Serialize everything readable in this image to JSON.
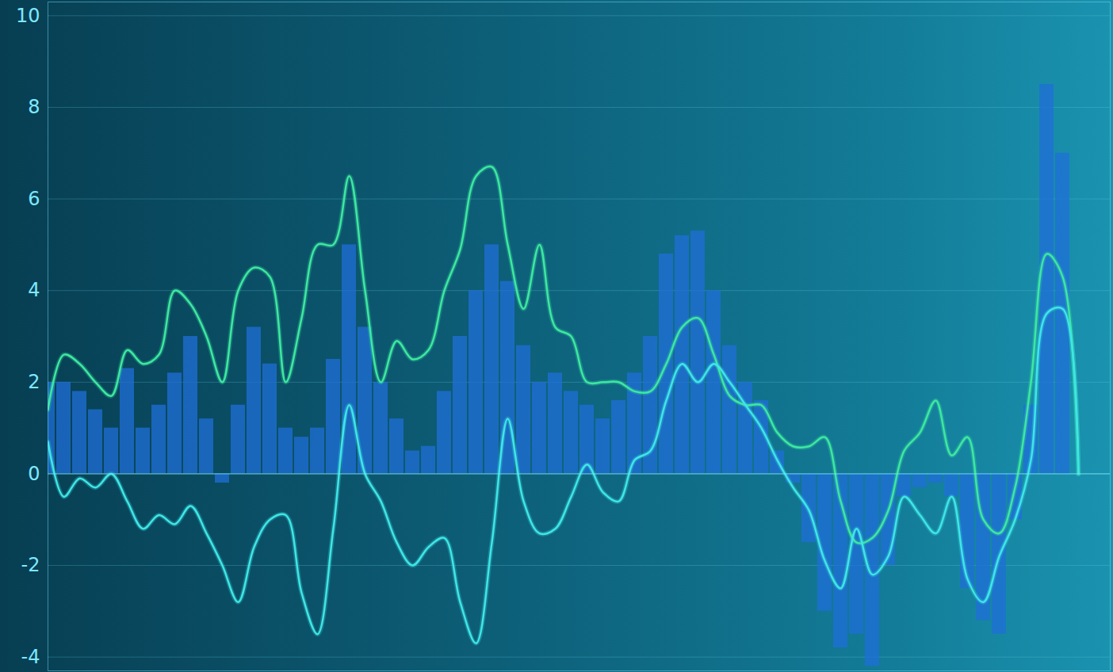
{
  "chart_data": {
    "type": "line",
    "x": [
      0,
      1,
      2,
      3,
      4,
      5,
      6,
      7,
      8,
      9,
      10,
      11,
      12,
      13,
      14,
      15,
      16,
      17,
      18,
      19,
      20,
      21,
      22,
      23,
      24,
      25,
      26,
      27,
      28,
      29,
      30,
      31,
      32,
      33,
      34,
      35,
      36,
      37,
      38,
      39,
      40,
      41,
      42,
      43,
      44,
      45,
      46,
      47,
      48,
      49,
      50,
      51,
      52,
      53,
      54,
      55,
      56,
      57,
      58,
      59,
      60,
      61,
      62,
      63,
      64,
      65
    ],
    "xlim": [
      0,
      67
    ],
    "ylim": [
      -4.3,
      10.3
    ],
    "yticks": [
      -4,
      -2,
      0,
      2,
      4,
      6,
      8,
      10
    ],
    "grid": true,
    "tick_labels": "y",
    "series": [
      {
        "type": "bar",
        "color": "#1f6fd8",
        "values": [
          2.0,
          2.0,
          1.8,
          1.4,
          1.0,
          2.3,
          1.0,
          1.5,
          2.2,
          3.0,
          1.2,
          -0.2,
          1.5,
          3.2,
          2.4,
          1.0,
          0.8,
          1.0,
          2.5,
          5.0,
          3.2,
          2.0,
          1.2,
          0.5,
          0.6,
          1.8,
          3.0,
          4.0,
          5.0,
          4.2,
          2.8,
          2.0,
          2.2,
          1.8,
          1.5,
          1.2,
          1.6,
          2.2,
          3.0,
          4.8,
          5.2,
          5.3,
          4.0,
          2.8,
          2.0,
          1.6,
          0.5,
          -0.2,
          -1.5,
          -3.0,
          -3.8,
          -3.5,
          -4.2,
          -2.0,
          -0.5,
          -0.3,
          -0.2,
          -0.5,
          -2.5,
          -3.2,
          -3.5,
          -1.0,
          1.5,
          8.5,
          7.0,
          null
        ]
      },
      {
        "type": "line",
        "color": "#3de8a0",
        "values": [
          1.4,
          2.6,
          2.4,
          2.0,
          1.7,
          2.7,
          2.4,
          2.6,
          4.0,
          3.7,
          3.0,
          2.0,
          4.0,
          4.5,
          4.3,
          2.0,
          3.4,
          5.0,
          5.0,
          6.5,
          4.0,
          2.0,
          2.9,
          2.5,
          2.7,
          4.0,
          4.9,
          6.5,
          6.7,
          5.0,
          3.6,
          5.0,
          3.2,
          3.0,
          2.0,
          2.0,
          2.0,
          1.8,
          1.8,
          2.4,
          3.2,
          3.4,
          2.6,
          1.7,
          1.5,
          1.5,
          0.9,
          0.6,
          0.6,
          0.8,
          -0.6,
          -1.5,
          -1.4,
          -0.8,
          0.5,
          0.9,
          1.6,
          0.4,
          0.8,
          -1.0,
          -1.3,
          -0.3,
          2.0,
          4.8,
          4.3,
          0.0
        ]
      },
      {
        "type": "line",
        "color": "#3ee6e6",
        "values": [
          0.7,
          -0.5,
          -0.1,
          -0.3,
          0.0,
          -0.6,
          -1.2,
          -0.9,
          -1.1,
          -0.7,
          -1.3,
          -2.0,
          -2.8,
          -1.6,
          -1.0,
          -0.9,
          -2.6,
          -3.5,
          -1.2,
          1.5,
          0.0,
          -0.6,
          -1.5,
          -2.0,
          -1.6,
          -1.4,
          -2.8,
          -3.7,
          -1.5,
          1.2,
          -0.6,
          -1.3,
          -1.2,
          -0.5,
          0.2,
          -0.4,
          -0.6,
          0.3,
          0.5,
          1.6,
          2.4,
          2.0,
          2.4,
          2.0,
          1.5,
          1.0,
          0.3,
          -0.3,
          -0.8,
          -1.9,
          -2.5,
          -1.2,
          -2.2,
          -1.8,
          -0.5,
          -0.9,
          -1.3,
          -0.5,
          -2.3,
          -2.8,
          -1.8,
          -1.0,
          0.3,
          3.5,
          3.6,
          0.0
        ]
      }
    ]
  }
}
